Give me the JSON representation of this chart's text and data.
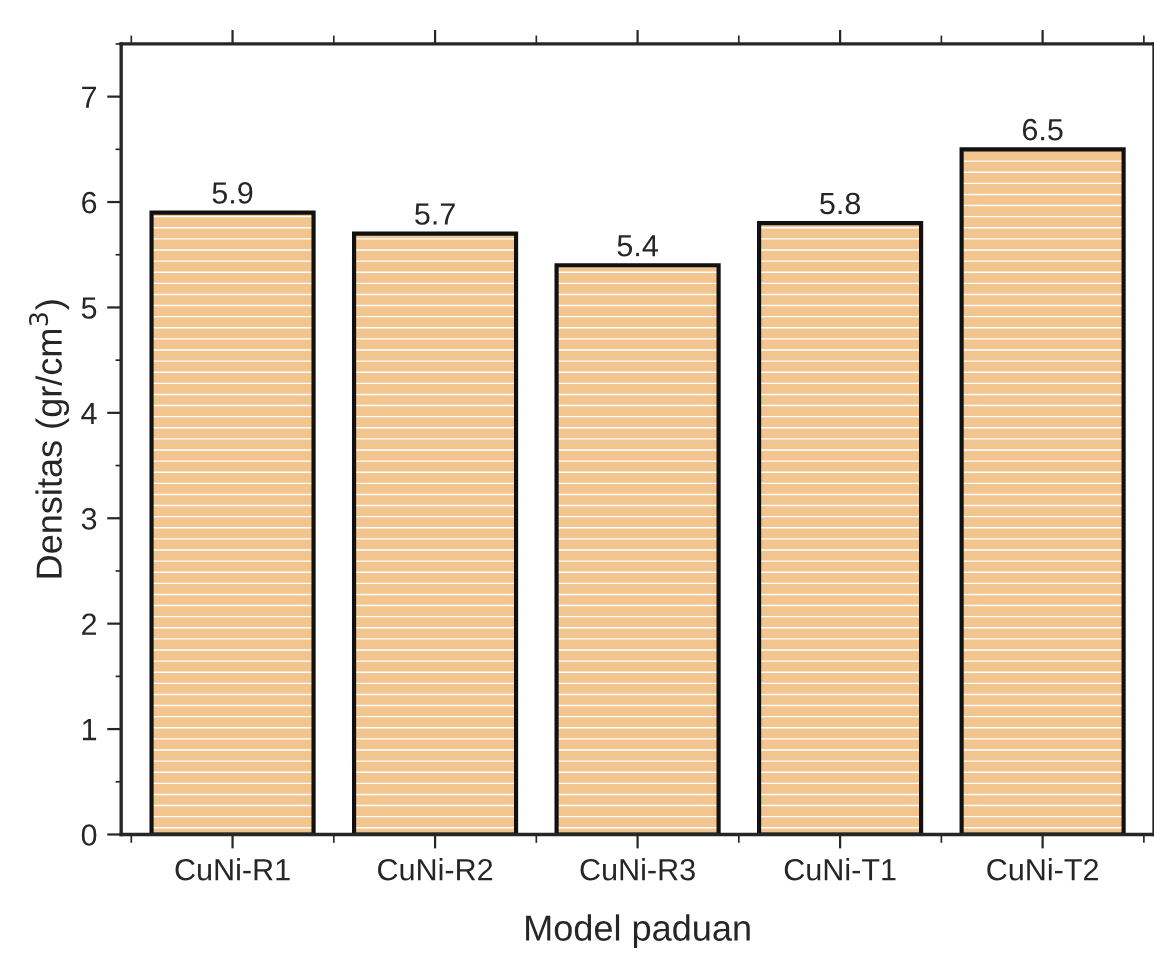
{
  "chart_data": {
    "type": "bar",
    "xlabel": "Model paduan",
    "ylabel": "Densitas (gr/cm$^{3}$)",
    "categories": [
      "CuNi-R1",
      "CuNi-R2",
      "CuNi-R3",
      "CuNi-T1",
      "CuNi-T2"
    ],
    "values": [
      5.9,
      5.7,
      5.4,
      5.8,
      6.5
    ],
    "color": "#f2c48e",
    "ylim": [
      0,
      7.5
    ],
    "yticks": [
      0,
      1,
      2,
      3,
      4,
      5,
      6,
      7
    ],
    "data_labels": true,
    "grid": false,
    "legend": false
  }
}
